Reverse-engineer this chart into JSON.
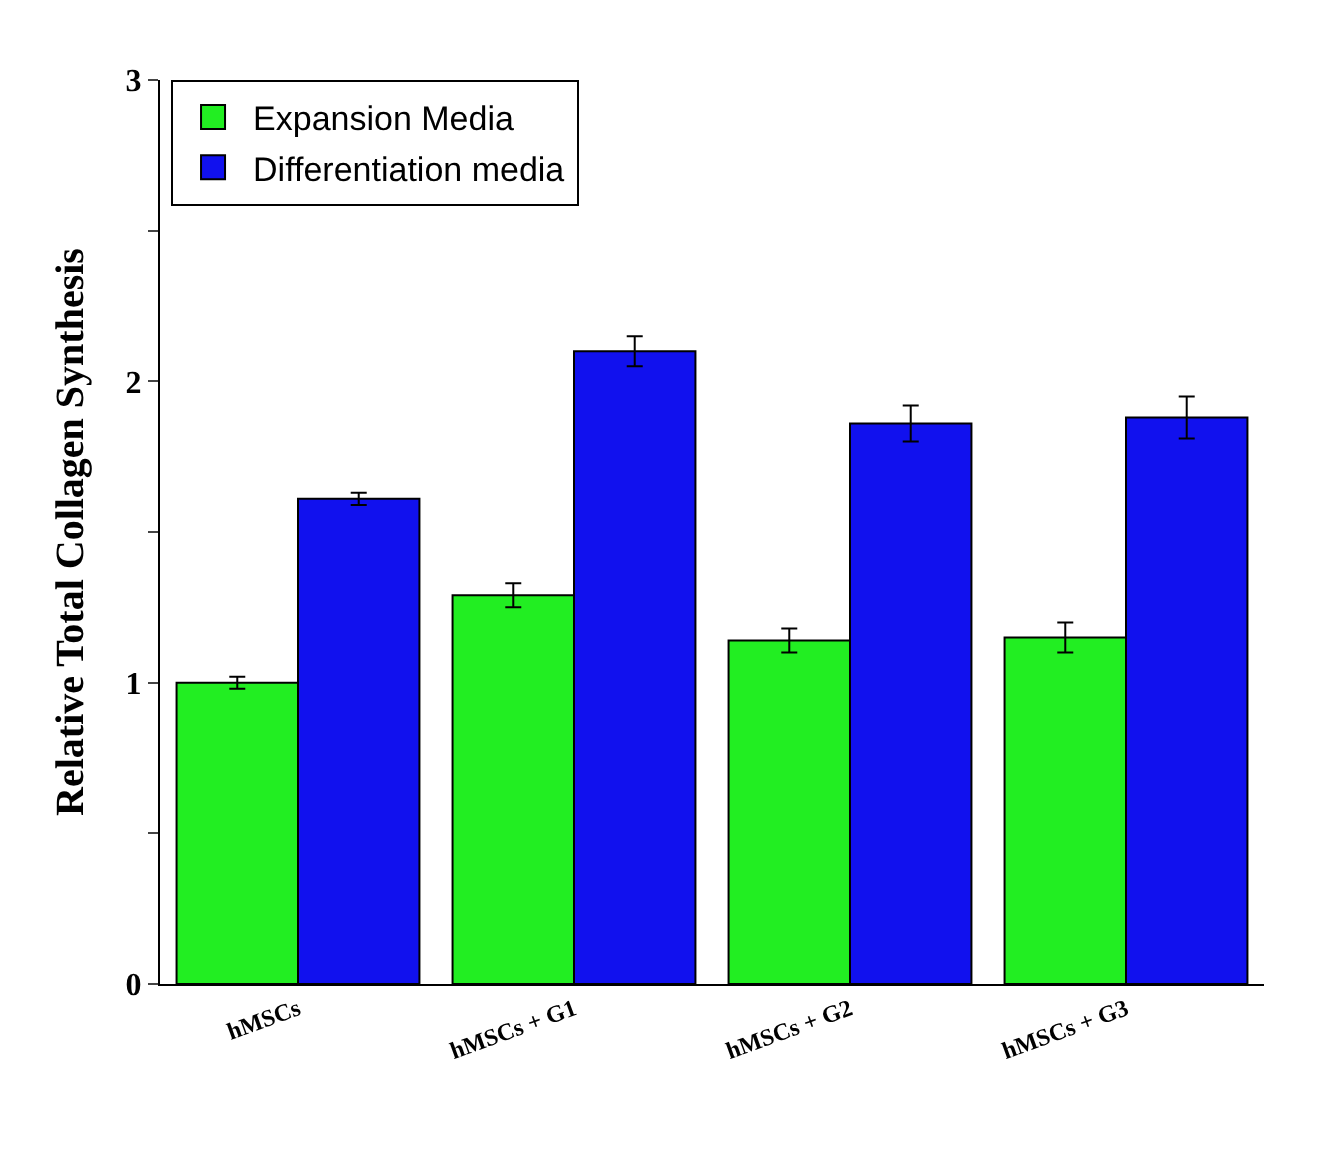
{
  "chart_data": {
    "type": "bar",
    "ylabel": "Relative Total Collagen Synthesis",
    "categories": [
      "hMSCs",
      "hMSCs + G1",
      "hMSCs + G2",
      "hMSCs + G3"
    ],
    "series": [
      {
        "name": "Expansion Media",
        "color": "#22ee22",
        "values": [
          1.0,
          1.29,
          1.14,
          1.15
        ],
        "errors": [
          0.02,
          0.04,
          0.04,
          0.05
        ]
      },
      {
        "name": "Differentiation media",
        "color": "#1111ee",
        "values": [
          1.61,
          2.1,
          1.86,
          1.88
        ],
        "errors": [
          0.02,
          0.05,
          0.06,
          0.07
        ]
      }
    ],
    "ylim": [
      0,
      3
    ],
    "yticks": [
      0,
      {
        "value": 0.5,
        "label": null
      },
      1,
      {
        "value": 1.5,
        "label": null
      },
      2,
      {
        "value": 2.5,
        "label": null
      },
      3
    ],
    "legend": "top left"
  }
}
